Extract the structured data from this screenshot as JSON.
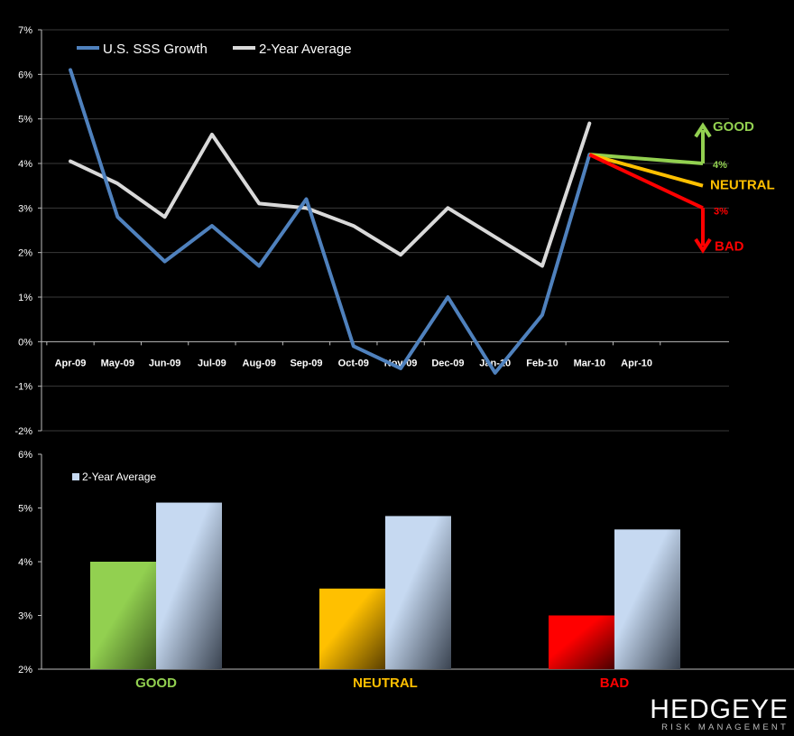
{
  "colors": {
    "sss": "#4F81BD",
    "avg": "#D9D9D9",
    "good": "#92D050",
    "neutral": "#FFC000",
    "bad": "#FF0000",
    "avg_bar": "#C6D9F1"
  },
  "chart_data": [
    {
      "type": "line",
      "categories": [
        "Apr-09",
        "May-09",
        "Jun-09",
        "Jul-09",
        "Aug-09",
        "Sep-09",
        "Oct-09",
        "Nov-09",
        "Dec-09",
        "Jan-10",
        "Feb-10",
        "Mar-10",
        "Apr-10"
      ],
      "series": [
        {
          "name": "U.S. SSS Growth",
          "values": [
            6.1,
            2.8,
            1.8,
            2.6,
            1.7,
            3.2,
            -0.1,
            -0.6,
            1.0,
            -0.7,
            0.6,
            4.2,
            null
          ]
        },
        {
          "name": "2-Year Average",
          "values": [
            4.05,
            3.55,
            2.8,
            4.65,
            3.1,
            3.0,
            2.6,
            1.95,
            3.0,
            2.35,
            1.7,
            4.9,
            null
          ]
        }
      ],
      "ylim": [
        -2,
        7
      ],
      "yticks": [
        "-2%",
        "-1%",
        "0%",
        "1%",
        "2%",
        "3%",
        "4%",
        "5%",
        "6%",
        "7%"
      ],
      "legend": [
        "U.S. SSS Growth",
        "2-Year Average"
      ],
      "projections": [
        {
          "label": "GOOD",
          "from": 4.2,
          "to": 4.0,
          "arrow": "up",
          "value_label": "4%"
        },
        {
          "label": "NEUTRAL",
          "from": 4.2,
          "to": 3.5
        },
        {
          "label": "BAD",
          "from": 4.2,
          "to": 3.0,
          "arrow": "down",
          "value_label": "3%"
        }
      ]
    },
    {
      "type": "bar",
      "categories": [
        "GOOD",
        "NEUTRAL",
        "BAD"
      ],
      "series": [
        {
          "name": "U.S. SSS Growth",
          "values": [
            4.0,
            3.5,
            3.0
          ]
        },
        {
          "name": "2-Year Average",
          "values": [
            5.1,
            4.85,
            4.6
          ]
        }
      ],
      "ylim": [
        2,
        6
      ],
      "yticks": [
        "2%",
        "3%",
        "4%",
        "5%",
        "6%"
      ],
      "legend": [
        "2-Year Average"
      ]
    }
  ],
  "logo": {
    "main": "HEDGEYE",
    "sub": "RISK MANAGEMENT"
  }
}
